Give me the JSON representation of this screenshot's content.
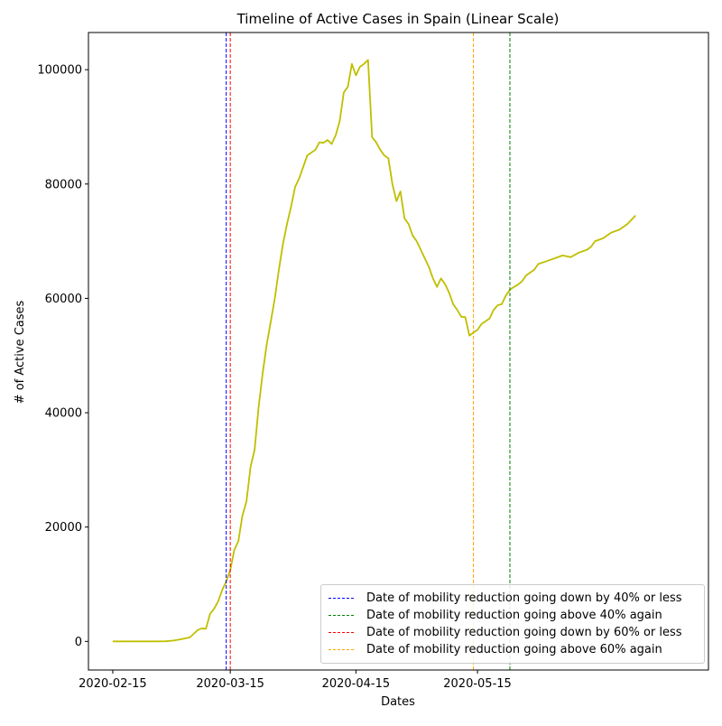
{
  "chart_data": {
    "type": "line",
    "title": "Timeline of Active Cases in Spain (Linear Scale)",
    "xlabel": "Dates",
    "ylabel": "# of Active Cases",
    "x_ticks": [
      "2020-02-15",
      "2020-03-15",
      "2020-04-15",
      "2020-05-15"
    ],
    "y_ticks": [
      0,
      20000,
      40000,
      60000,
      80000,
      100000
    ],
    "y_tick_labels": [
      "0",
      "20000",
      "40000",
      "60000",
      "80000",
      "100000"
    ],
    "xlim": [
      "2020-02-09",
      "2020-07-11"
    ],
    "ylim": [
      -5000,
      106500
    ],
    "grid": false,
    "legend_position": "lower-right",
    "series": [
      {
        "color": "#bfbf00",
        "x": [
          "2020-02-15",
          "2020-02-20",
          "2020-02-25",
          "2020-02-28",
          "2020-03-01",
          "2020-03-03",
          "2020-03-05",
          "2020-03-07",
          "2020-03-08",
          "2020-03-09",
          "2020-03-10",
          "2020-03-11",
          "2020-03-12",
          "2020-03-13",
          "2020-03-14",
          "2020-03-15",
          "2020-03-16",
          "2020-03-17",
          "2020-03-18",
          "2020-03-19",
          "2020-03-20",
          "2020-03-21",
          "2020-03-22",
          "2020-03-23",
          "2020-03-24",
          "2020-03-25",
          "2020-03-26",
          "2020-03-27",
          "2020-03-28",
          "2020-03-29",
          "2020-03-30",
          "2020-03-31",
          "2020-04-01",
          "2020-04-02",
          "2020-04-03",
          "2020-04-04",
          "2020-04-05",
          "2020-04-06",
          "2020-04-07",
          "2020-04-08",
          "2020-04-09",
          "2020-04-10",
          "2020-04-11",
          "2020-04-12",
          "2020-04-13",
          "2020-04-14",
          "2020-04-15",
          "2020-04-16",
          "2020-04-17",
          "2020-04-18",
          "2020-04-19",
          "2020-04-20",
          "2020-04-21",
          "2020-04-22",
          "2020-04-23",
          "2020-04-24",
          "2020-04-25",
          "2020-04-26",
          "2020-04-27",
          "2020-04-28",
          "2020-04-29",
          "2020-04-30",
          "2020-05-01",
          "2020-05-02",
          "2020-05-03",
          "2020-05-04",
          "2020-05-05",
          "2020-05-06",
          "2020-05-07",
          "2020-05-08",
          "2020-05-09",
          "2020-05-10",
          "2020-05-11",
          "2020-05-12",
          "2020-05-13",
          "2020-05-14",
          "2020-05-15",
          "2020-05-16",
          "2020-05-17",
          "2020-05-18",
          "2020-05-19",
          "2020-05-20",
          "2020-05-21",
          "2020-05-22",
          "2020-05-23",
          "2020-05-24",
          "2020-05-25",
          "2020-05-26",
          "2020-05-27",
          "2020-05-28",
          "2020-05-29",
          "2020-05-30",
          "2020-06-01",
          "2020-06-03",
          "2020-06-05",
          "2020-06-07",
          "2020-06-09",
          "2020-06-11",
          "2020-06-12",
          "2020-06-13",
          "2020-06-15",
          "2020-06-17",
          "2020-06-19",
          "2020-06-21",
          "2020-06-23"
        ],
        "y": [
          0,
          0,
          0,
          20,
          150,
          400,
          700,
          2000,
          2300,
          2200,
          4800,
          5700,
          7000,
          9000,
          10500,
          12500,
          16000,
          17500,
          22000,
          24500,
          30500,
          33500,
          41000,
          47000,
          52000,
          56000,
          60000,
          65000,
          69500,
          73000,
          76000,
          79500,
          81000,
          83000,
          85000,
          85500,
          86000,
          87300,
          87200,
          87700,
          87000,
          88500,
          91000,
          96000,
          97000,
          101000,
          99000,
          100500,
          101000,
          101700,
          88200,
          87300,
          86000,
          85000,
          84500,
          80000,
          77000,
          78700,
          74000,
          73000,
          71000,
          70000,
          68500,
          67000,
          65500,
          63500,
          62000,
          63500,
          62500,
          61000,
          59000,
          58000,
          56800,
          56700,
          53500,
          54000,
          54500,
          55500,
          56000,
          56500,
          58000,
          58800,
          59000,
          60500,
          61500,
          62000,
          62400,
          63000,
          64000,
          64500,
          65000,
          66000,
          66500,
          67000,
          67500,
          67200,
          68000,
          68500,
          69000,
          70000,
          70500,
          71500,
          72000,
          73000,
          74500
        ]
      }
    ],
    "vlines": [
      {
        "date": "2020-03-14",
        "color": "#0000ff",
        "label": "Date of mobility reduction going down by 40% or less"
      },
      {
        "date": "2020-05-23",
        "color": "#008000",
        "label": "Date of mobility reduction going above 40% again"
      },
      {
        "date": "2020-03-15",
        "color": "#ff0000",
        "label": "Date of mobility reduction going down by 60% or less"
      },
      {
        "date": "2020-05-14",
        "color": "#ffa500",
        "label": "Date of mobility reduction going above 60% again"
      }
    ]
  }
}
